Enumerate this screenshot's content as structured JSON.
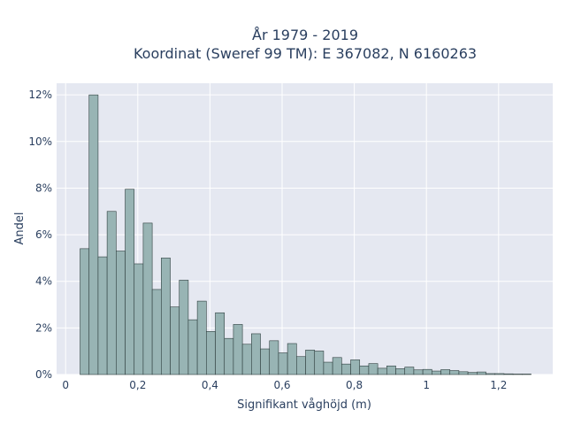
{
  "chart_data": {
    "type": "bar",
    "title_line1": "År 1979 - 2019",
    "title_line2": "Koordinat (Sweref 99 TM): E 367082, N 6160263",
    "xlabel": "Signifikant våghöjd (m)",
    "ylabel": "Andel",
    "xlim": [
      -0.025,
      1.35
    ],
    "ylim": [
      0,
      0.125
    ],
    "grid": true,
    "x_ticks": [
      {
        "value": 0,
        "label": "0"
      },
      {
        "value": 0.2,
        "label": "0,2"
      },
      {
        "value": 0.4,
        "label": "0,4"
      },
      {
        "value": 0.6,
        "label": "0,6"
      },
      {
        "value": 0.8,
        "label": "0,8"
      },
      {
        "value": 1.0,
        "label": "1"
      },
      {
        "value": 1.2,
        "label": "1,2"
      }
    ],
    "y_ticks": [
      {
        "value": 0,
        "label": "0%"
      },
      {
        "value": 0.02,
        "label": "2%"
      },
      {
        "value": 0.04,
        "label": "4%"
      },
      {
        "value": 0.06,
        "label": "6%"
      },
      {
        "value": 0.08,
        "label": "8%"
      },
      {
        "value": 0.1,
        "label": "10%"
      },
      {
        "value": 0.12,
        "label": "12%"
      }
    ],
    "bin_width": 0.025,
    "bin_start": 0.04,
    "values": [
      0.054,
      0.12,
      0.0505,
      0.07,
      0.053,
      0.0795,
      0.0475,
      0.065,
      0.0365,
      0.05,
      0.029,
      0.0405,
      0.0235,
      0.0315,
      0.0185,
      0.0265,
      0.0155,
      0.0215,
      0.013,
      0.0175,
      0.011,
      0.0145,
      0.0093,
      0.0133,
      0.0077,
      0.0105,
      0.0101,
      0.0053,
      0.0073,
      0.0045,
      0.0063,
      0.0037,
      0.0047,
      0.0027,
      0.0037,
      0.0025,
      0.0032,
      0.002,
      0.0022,
      0.0015,
      0.0021,
      0.0017,
      0.0012,
      0.0009,
      0.0011,
      0.0004,
      0.0004,
      0.0003,
      0.0002,
      0.0002
    ],
    "colors": {
      "bar_fill": "#98b4b4",
      "bar_stroke": "#2f3f3f",
      "plot_bg": "#e5e8f1",
      "grid": "#ffffff",
      "text": "#2a3f5f"
    }
  }
}
